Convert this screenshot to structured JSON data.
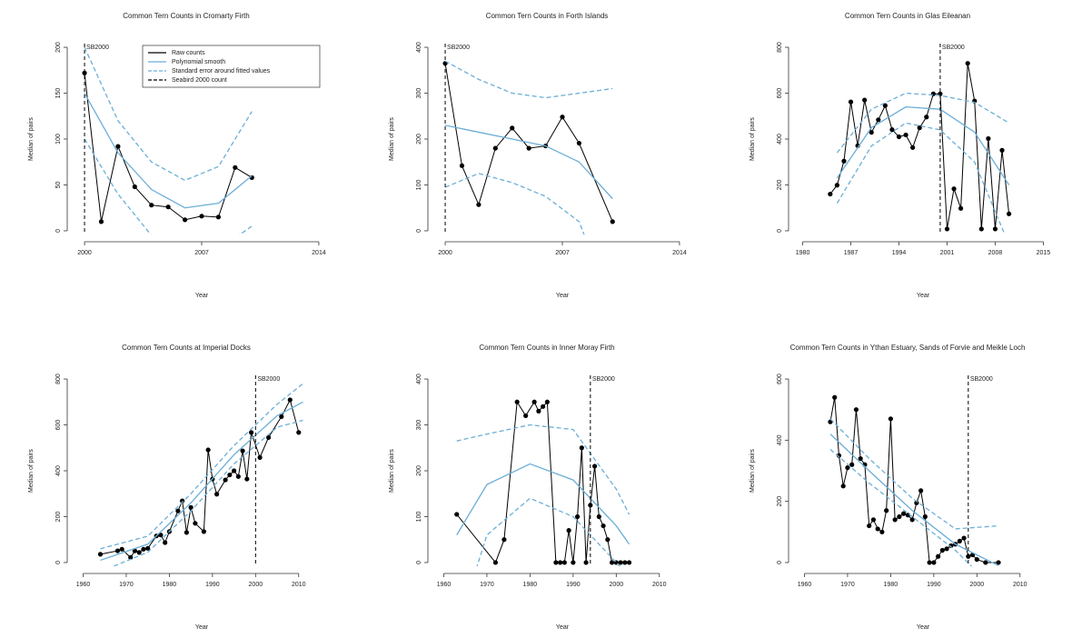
{
  "chart_data": [
    {
      "type": "line",
      "title": "Common Tern Counts in Cromarty Firth",
      "xlabel": "Year",
      "ylabel": "Median of pairs",
      "x": [
        2000,
        2001,
        2002,
        2003,
        2004,
        2005,
        2006,
        2007,
        2008,
        2009,
        2010
      ],
      "xlim": [
        1999.4,
        2014.6
      ],
      "xticks": [
        2000,
        2007,
        2014
      ],
      "ylim": [
        -4,
        204
      ],
      "yticks": [
        0,
        50,
        100,
        150,
        200
      ],
      "legend": "top-right",
      "series": [
        {
          "name": "Raw counts",
          "color": "#000000",
          "marker": true,
          "values": [
            172,
            10,
            92,
            48,
            28,
            26,
            12,
            16,
            15,
            69,
            58
          ]
        },
        {
          "name": "Polynomial smooth",
          "color": "#6baed6",
          "x": [
            2000,
            2002,
            2004,
            2006,
            2008,
            2010
          ],
          "values": [
            150,
            85,
            45,
            25,
            30,
            60
          ]
        },
        {
          "name": "Standard error around fitted values",
          "color": "#6baed6",
          "style": "dashed",
          "x": [
            2000,
            2002,
            2004,
            2006,
            2008,
            2010
          ],
          "upper": [
            200,
            120,
            75,
            55,
            70,
            130
          ],
          "lower": [
            100,
            40,
            -5,
            -25,
            -20,
            5
          ]
        }
      ],
      "vline": {
        "name": "Seabird 2000 count",
        "x": 2000,
        "label": "SB2000"
      }
    },
    {
      "type": "line",
      "title": "Common Tern Counts in Forth Islands",
      "xlabel": "Year",
      "ylabel": "Median of pairs",
      "x": [
        2000,
        2001,
        2002,
        2003,
        2004,
        2005,
        2006,
        2007,
        2008,
        2010
      ],
      "xlim": [
        1999.4,
        2014.6
      ],
      "xticks": [
        2000,
        2007,
        2014
      ],
      "ylim": [
        -8,
        408
      ],
      "yticks": [
        0,
        100,
        200,
        300,
        400
      ],
      "series": [
        {
          "color": "#000000",
          "marker": true,
          "values": [
            365,
            142,
            57,
            180,
            224,
            180,
            185,
            248,
            191,
            20
          ]
        },
        {
          "color": "#6baed6",
          "x": [
            2000,
            2002,
            2004,
            2006,
            2008,
            2010
          ],
          "values": [
            230,
            215,
            200,
            185,
            150,
            70
          ]
        },
        {
          "color": "#6baed6",
          "style": "dashed",
          "x": [
            2000,
            2002,
            2004,
            2006,
            2008,
            2010
          ],
          "upper": [
            370,
            330,
            300,
            290,
            300,
            310
          ],
          "lower": [
            95,
            125,
            105,
            75,
            20,
            -170
          ]
        }
      ],
      "vline": {
        "x": 2000,
        "label": "SB2000"
      }
    },
    {
      "type": "line",
      "title": "Common Tern Counts in Glas Eileanan",
      "xlabel": "Year",
      "ylabel": "Median of pairs",
      "x": [
        1984,
        1985,
        1986,
        1987,
        1988,
        1989,
        1990,
        1991,
        1992,
        1993,
        1994,
        1995,
        1996,
        1997,
        1998,
        1999,
        2000,
        2001,
        2002,
        2003,
        2004,
        2005,
        2006,
        2007,
        2008,
        2009,
        2010
      ],
      "xlim": [
        1979,
        2016
      ],
      "xticks": [
        1980,
        1987,
        1994,
        2001,
        2008,
        2015
      ],
      "ylim": [
        -16,
        816
      ],
      "yticks": [
        0,
        200,
        400,
        600,
        800
      ],
      "series": [
        {
          "color": "#000000",
          "marker": true,
          "values": [
            160,
            199,
            304,
            562,
            371,
            570,
            429,
            484,
            546,
            441,
            410,
            418,
            363,
            449,
            496,
            597,
            597,
            8,
            183,
            98,
            730,
            566,
            8,
            402,
            8,
            351,
            74
          ]
        },
        {
          "color": "#6baed6",
          "x": [
            1985,
            1990,
            1995,
            2000,
            2005,
            2010
          ],
          "values": [
            230,
            450,
            540,
            530,
            430,
            200
          ]
        },
        {
          "color": "#6baed6",
          "style": "dashed",
          "x": [
            1985,
            1990,
            1995,
            2000,
            2005,
            2010
          ],
          "upper": [
            340,
            530,
            600,
            590,
            560,
            470
          ],
          "lower": [
            120,
            370,
            470,
            440,
            300,
            -60
          ]
        }
      ],
      "vline": {
        "x": 2000,
        "label": "SB2000"
      }
    },
    {
      "type": "line",
      "title": "Common Tern Counts at Imperial Docks",
      "xlabel": "Year",
      "ylabel": "Median of pairs",
      "x": [
        1964,
        1968,
        1969,
        1971,
        1972,
        1973,
        1974,
        1975,
        1977,
        1978,
        1979,
        1980,
        1982,
        1983,
        1984,
        1985,
        1986,
        1988,
        1989,
        1990,
        1991,
        1993,
        1994,
        1995,
        1996,
        1997,
        1998,
        1999,
        2001,
        2003,
        2006,
        2008,
        2010
      ],
      "xlim": [
        1958,
        2017
      ],
      "xticks": [
        1960,
        1970,
        1980,
        1990,
        2000,
        2010
      ],
      "ylim": [
        -16,
        816
      ],
      "yticks": [
        0,
        200,
        400,
        600,
        800
      ],
      "series": [
        {
          "color": "#000000",
          "marker": true,
          "values": [
            36,
            51,
            58,
            22,
            51,
            44,
            58,
            62,
            116,
            120,
            87,
            135,
            225,
            269,
            131,
            240,
            171,
            135,
            491,
            364,
            298,
            360,
            382,
            400,
            375,
            487,
            364,
            567,
            458,
            545,
            636,
            709,
            567
          ]
        },
        {
          "color": "#6baed6",
          "x": [
            1964,
            1975,
            1985,
            1995,
            2005,
            2011
          ],
          "values": [
            10,
            80,
            260,
            470,
            640,
            700
          ]
        },
        {
          "color": "#6baed6",
          "style": "dashed",
          "x": [
            1964,
            1975,
            1985,
            1995,
            2005,
            2011
          ],
          "upper": [
            60,
            115,
            300,
            510,
            690,
            780
          ],
          "lower": [
            -40,
            45,
            225,
            430,
            590,
            620
          ]
        }
      ],
      "vline": {
        "x": 2000,
        "label": "SB2000"
      }
    },
    {
      "type": "line",
      "title": "Common Tern Counts in Inner Moray Firth",
      "xlabel": "Year",
      "ylabel": "Median of pairs",
      "x": [
        1963,
        1972,
        1974,
        1977,
        1979,
        1981,
        1982,
        1983,
        1984,
        1986,
        1987,
        1988,
        1989,
        1990,
        1991,
        1992,
        1993,
        1994,
        1995,
        1996,
        1997,
        1998,
        1999,
        2000,
        2001,
        2002,
        2003
      ],
      "xlim": [
        1958,
        2017
      ],
      "xticks": [
        1960,
        1970,
        1980,
        1990,
        2000,
        2010
      ],
      "ylim": [
        -8,
        408
      ],
      "yticks": [
        0,
        100,
        200,
        300,
        400
      ],
      "series": [
        {
          "color": "#000000",
          "marker": true,
          "values": [
            105,
            0,
            50,
            350,
            320,
            350,
            330,
            340,
            350,
            0,
            0,
            0,
            70,
            0,
            100,
            250,
            0,
            125,
            210,
            100,
            80,
            50,
            0,
            0,
            0,
            0,
            0
          ]
        },
        {
          "color": "#6baed6",
          "x": [
            1963,
            1970,
            1980,
            1990,
            2000,
            2003
          ],
          "values": [
            60,
            170,
            215,
            180,
            80,
            40
          ]
        },
        {
          "color": "#6baed6",
          "style": "dashed",
          "x": [
            1963,
            1970,
            1980,
            1990,
            2000,
            2003
          ],
          "upper": [
            265,
            280,
            300,
            290,
            160,
            105
          ],
          "lower": [
            -150,
            60,
            140,
            100,
            0,
            -30
          ]
        }
      ],
      "vline": {
        "x": 1994,
        "label": "SB2000"
      }
    },
    {
      "type": "line",
      "title": "Common Tern Counts in Ythan Estuary, Sands of Forvie and Meikle Loch",
      "xlabel": "Year",
      "ylabel": "Median of pairs",
      "x": [
        1966,
        1967,
        1968,
        1969,
        1970,
        1971,
        1972,
        1973,
        1974,
        1975,
        1976,
        1977,
        1978,
        1979,
        1980,
        1981,
        1982,
        1983,
        1984,
        1985,
        1986,
        1987,
        1988,
        1989,
        1990,
        1991,
        1992,
        1993,
        1994,
        1995,
        1996,
        1997,
        1998,
        1999,
        2000,
        2002,
        2005
      ],
      "xlim": [
        1958,
        2017
      ],
      "xticks": [
        1960,
        1970,
        1980,
        1990,
        2000,
        2010
      ],
      "ylim": [
        -12,
        612
      ],
      "yticks": [
        0,
        200,
        400,
        600
      ],
      "series": [
        {
          "color": "#000000",
          "marker": true,
          "values": [
            460,
            540,
            350,
            250,
            310,
            320,
            500,
            340,
            320,
            120,
            140,
            110,
            100,
            170,
            470,
            140,
            150,
            160,
            155,
            140,
            195,
            235,
            150,
            0,
            0,
            20,
            40,
            45,
            55,
            60,
            70,
            80,
            20,
            25,
            10,
            0,
            0
          ]
        },
        {
          "color": "#6baed6",
          "x": [
            1966,
            1975,
            1985,
            1995,
            2005
          ],
          "values": [
            420,
            300,
            170,
            60,
            -10
          ]
        },
        {
          "color": "#6baed6",
          "style": "dashed",
          "x": [
            1966,
            1975,
            1985,
            1995,
            2005
          ],
          "upper": [
            470,
            340,
            210,
            110,
            120
          ],
          "lower": [
            370,
            260,
            150,
            40,
            -100
          ]
        }
      ],
      "vline": {
        "x": 1998,
        "label": "SB2000"
      }
    }
  ]
}
